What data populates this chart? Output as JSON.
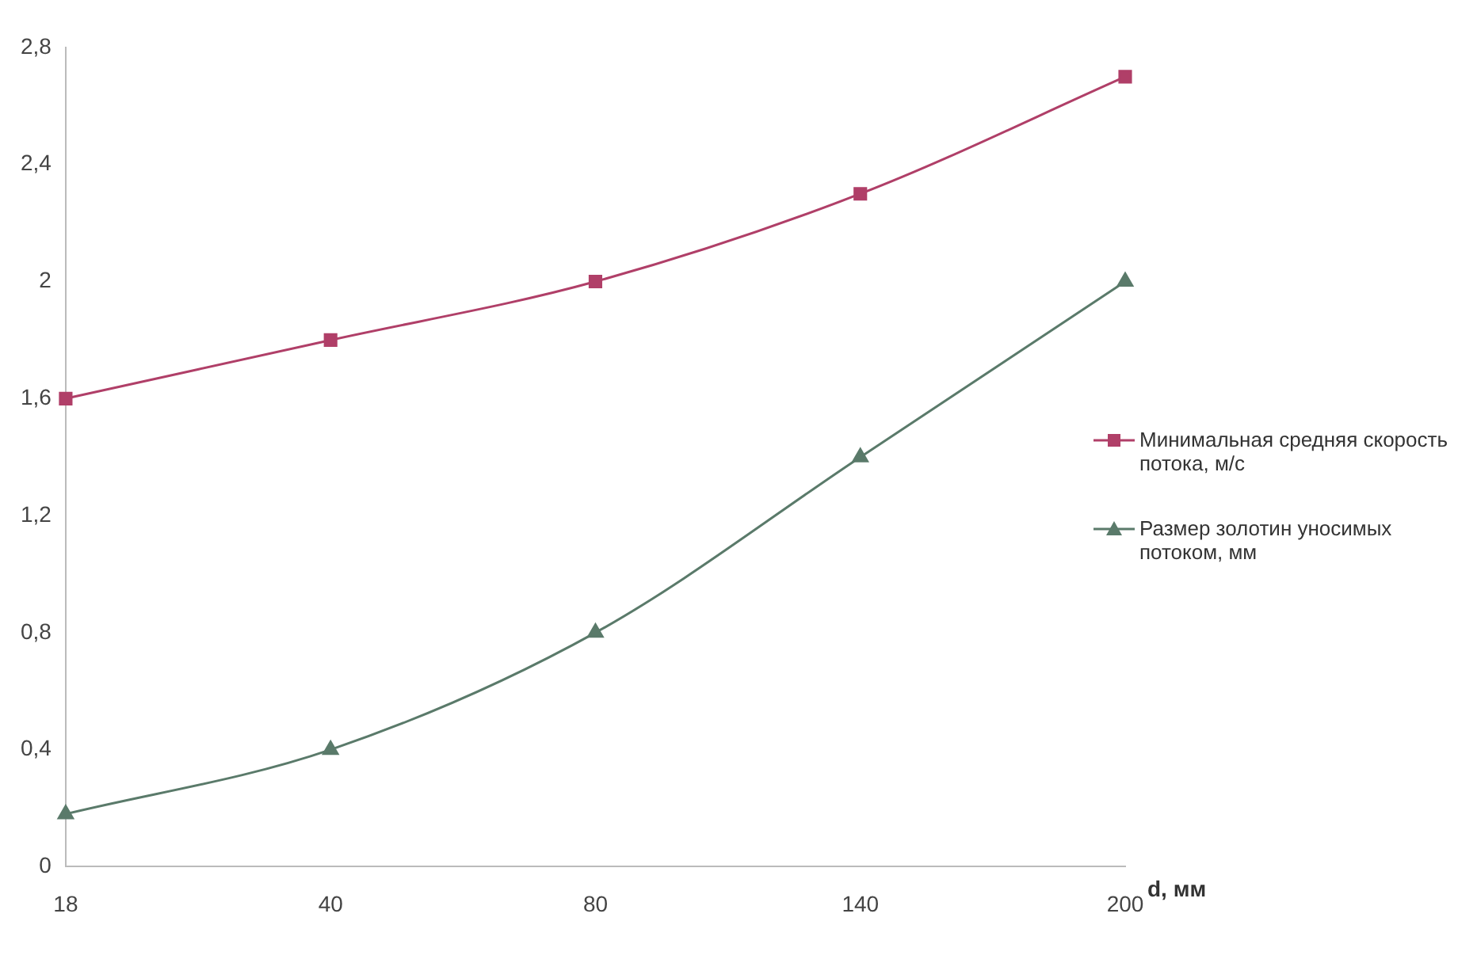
{
  "chart_data": {
    "type": "line",
    "xlabel": "d, мм",
    "categories": [
      "18",
      "40",
      "80",
      "140",
      "200"
    ],
    "ylim": [
      0,
      2.8
    ],
    "yticks": [
      0,
      {
        "value": 0.4,
        "label": "0,4"
      },
      {
        "value": 0.8,
        "label": "0,8"
      },
      {
        "value": 1.2,
        "label": "1,2"
      },
      {
        "value": 1.6,
        "label": "1,6"
      },
      2,
      {
        "value": 2.4,
        "label": "2,4"
      },
      {
        "value": 2.8,
        "label": "2,8"
      }
    ],
    "grid": false,
    "legend": "right",
    "line_style": "solid",
    "series": [
      {
        "name": "Минимальная средняя скорость потока, м/с",
        "color": "#b03f68",
        "marker": "square",
        "values": [
          1.6,
          1.8,
          2.0,
          2.3,
          2.7
        ]
      },
      {
        "name": "Размер золотин уносимых потоком, мм",
        "color": "#5a7a6a",
        "marker": "triangle",
        "values": [
          0.18,
          0.4,
          0.8,
          1.4,
          2.0
        ]
      }
    ]
  }
}
